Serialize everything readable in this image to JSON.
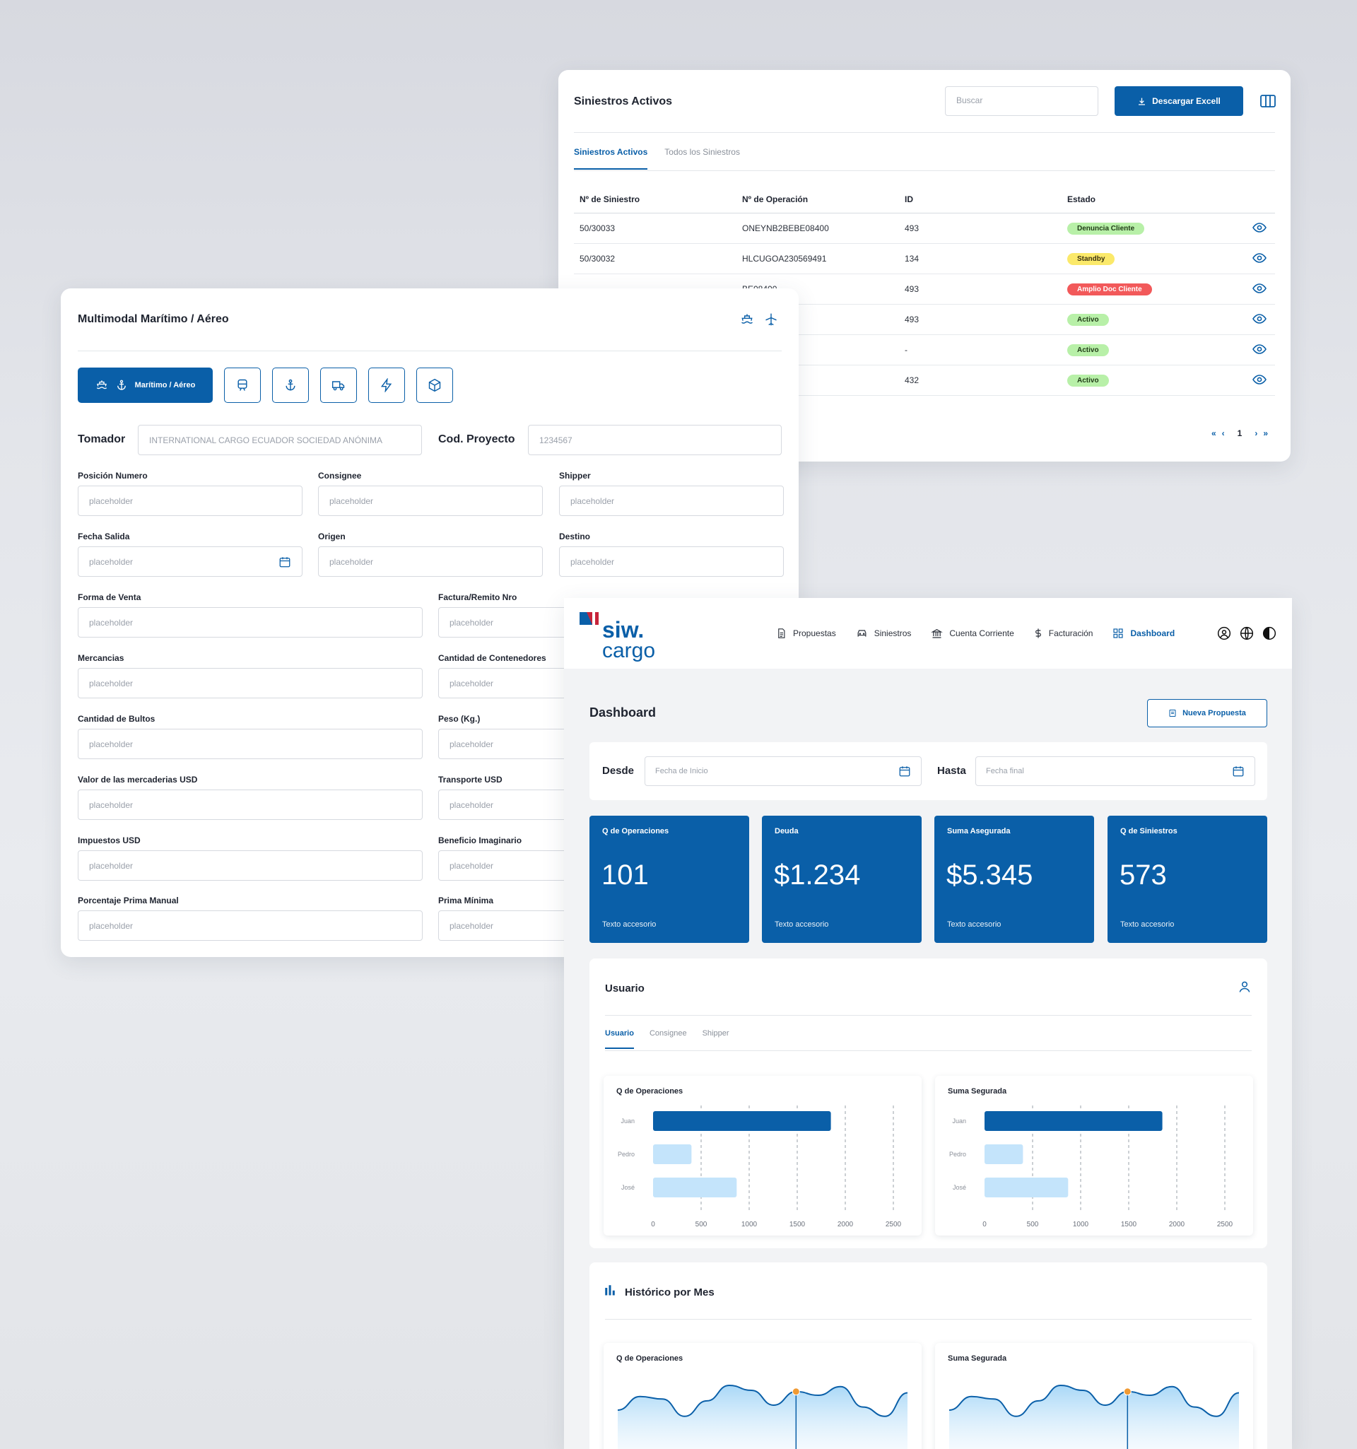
{
  "siniestros": {
    "title": "Siniestros Activos",
    "search_placeholder": "Buscar",
    "download_label": "Descargar Excell",
    "tabs": [
      "Siniestros Activos",
      "Todos los Siniestros"
    ],
    "columns": [
      "Nº de Siniestro",
      "Nº de Operación",
      "ID",
      "Estado"
    ],
    "rows": [
      {
        "siniestro": "50/30033",
        "operacion": "ONEYNB2BEBE08400",
        "id": "493",
        "estado": "Denuncia Cliente",
        "badge": "green"
      },
      {
        "siniestro": "50/30032",
        "operacion": "HLCUGOA230569491",
        "id": "134",
        "estado": "Standby",
        "badge": "yellow"
      },
      {
        "siniestro": "",
        "operacion": "BE08400",
        "id": "493",
        "estado": "Amplio Doc Cliente",
        "badge": "red"
      },
      {
        "siniestro": "",
        "operacion": "BE08400",
        "id": "493",
        "estado": "Activo",
        "badge": "green"
      },
      {
        "siniestro": "",
        "operacion": "",
        "id": "-",
        "estado": "Activo",
        "badge": "green"
      },
      {
        "siniestro": "",
        "operacion": "",
        "id": "432",
        "estado": "Activo",
        "badge": "green"
      }
    ],
    "pager": {
      "first": "«",
      "prev": "‹",
      "page": "1",
      "next": "›",
      "last": "»"
    }
  },
  "multimodal": {
    "title": "Multimodal Marítimo / Aéreo",
    "mode_active_label": "Marítimo / Aéreo",
    "mode_icons": [
      "ship-icon",
      "anchor-icon",
      "train-icon",
      "anchor-icon",
      "truck-icon",
      "lightning-icon",
      "package-icon"
    ],
    "tomador_label": "Tomador",
    "tomador_value": "INTERNATIONAL CARGO ECUADOR SOCIEDAD ANÓNIMA",
    "proyecto_label": "Cod. Proyecto",
    "proyecto_value": "1234567",
    "placeholder": "placeholder",
    "fields": {
      "posicion": "Posición Numero",
      "consignee": "Consignee",
      "shipper": "Shipper",
      "fecha_salida": "Fecha Salida",
      "origen": "Origen",
      "destino": "Destino",
      "forma_venta": "Forma de Venta",
      "factura": "Factura/Remito Nro",
      "mercancias": "Mercancias",
      "contenedores": "Cantidad de Contenedores",
      "bultos": "Cantidad de Bultos",
      "peso": "Peso (Kg.)",
      "valor": "Valor de las mercaderias USD",
      "transporte": "Transporte USD",
      "impuestos": "Impuestos USD",
      "beneficio": "Beneficio Imaginario",
      "porcentaje": "Porcentaje Prima Manual",
      "prima": "Prima Mínima"
    }
  },
  "dashboard": {
    "logo_top": "siw.",
    "logo_bottom": "cargo",
    "nav": [
      {
        "label": "Propuestas",
        "icon": "document-icon"
      },
      {
        "label": "Siniestros",
        "icon": "car-icon"
      },
      {
        "label": "Cuenta Corriente",
        "icon": "bank-icon"
      },
      {
        "label": "Facturación",
        "icon": "dollar-icon"
      },
      {
        "label": "Dashboard",
        "icon": "grid-icon"
      }
    ],
    "title": "Dashboard",
    "new_label": "Nueva Propuesta",
    "desde_label": "Desde",
    "desde_placeholder": "Fecha de Inicio",
    "hasta_label": "Hasta",
    "hasta_placeholder": "Fecha final",
    "kpis": [
      {
        "label": "Q de Operaciones",
        "value": "101",
        "note": "Texto accesorio"
      },
      {
        "label": "Deuda",
        "value": "$1.234",
        "note": "Texto accesorio"
      },
      {
        "label": "Suma Asegurada",
        "value": "$5.345",
        "note": "Texto accesorio"
      },
      {
        "label": "Q de Siniestros",
        "value": "573",
        "note": "Texto accesorio"
      }
    ],
    "usuario_title": "Usuario",
    "usuario_tabs": [
      "Usuario",
      "Consignee",
      "Shipper"
    ],
    "historico_title": "Histórico por Mes"
  },
  "chart_data": [
    {
      "type": "bar",
      "title": "Q de Operaciones",
      "orientation": "horizontal",
      "categories": [
        "Juan",
        "Pedro",
        "José"
      ],
      "values": [
        1850,
        400,
        870
      ],
      "xlim": [
        0,
        2500
      ],
      "xticks": [
        0,
        500,
        1000,
        1500,
        2000,
        2500
      ],
      "grid": true
    },
    {
      "type": "bar",
      "title": "Suma Segurada",
      "orientation": "horizontal",
      "categories": [
        "Juan",
        "Pedro",
        "José"
      ],
      "values": [
        1850,
        400,
        870
      ],
      "xlim": [
        0,
        2500
      ],
      "xticks": [
        0,
        500,
        1000,
        1500,
        2000,
        2500
      ],
      "grid": true
    },
    {
      "type": "area",
      "title": "Q de Operaciones",
      "values": [
        40,
        62,
        58,
        30,
        55,
        80,
        72,
        48,
        70,
        64,
        78,
        45,
        30,
        68
      ],
      "highlight_index": 8
    },
    {
      "type": "area",
      "title": "Suma Segurada",
      "values": [
        40,
        62,
        58,
        30,
        55,
        80,
        72,
        48,
        70,
        64,
        78,
        45,
        30,
        68
      ],
      "highlight_index": 8
    }
  ]
}
